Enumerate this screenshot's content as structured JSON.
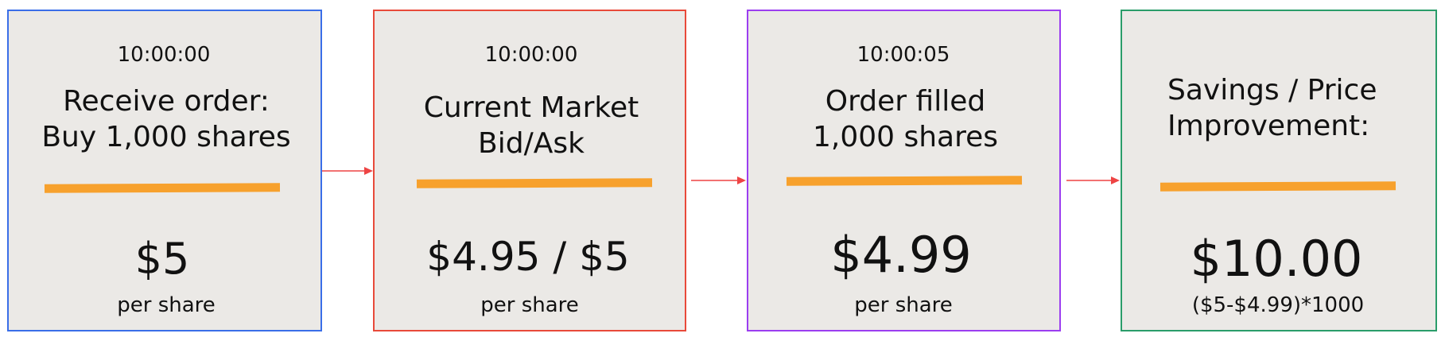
{
  "colors": {
    "card_bg": "#ebe9e6",
    "bar": "#f7a12d",
    "arrow": "#ee4444",
    "card1_border": "#3a6ee8",
    "card2_border": "#e84a3a",
    "card3_border": "#9b3ef0",
    "card4_border": "#2a9d6a"
  },
  "cards": [
    {
      "time": "10:00:00",
      "title_line1": "Receive order:",
      "title_line2": "Buy 1,000 shares",
      "value": "$5",
      "sub": "per share"
    },
    {
      "time": "10:00:00",
      "title_line1": "Current Market",
      "title_line2": "Bid/Ask",
      "value": "$4.95 / $5",
      "sub": "per share"
    },
    {
      "time": "10:00:05",
      "title_line1": "Order filled",
      "title_line2": "1,000 shares",
      "value": "$4.99",
      "sub": "per share"
    },
    {
      "title_line1": "Savings / Price",
      "title_line2": "Improvement:",
      "value": "$10.00",
      "sub": "($5-$4.99)*1000"
    }
  ]
}
